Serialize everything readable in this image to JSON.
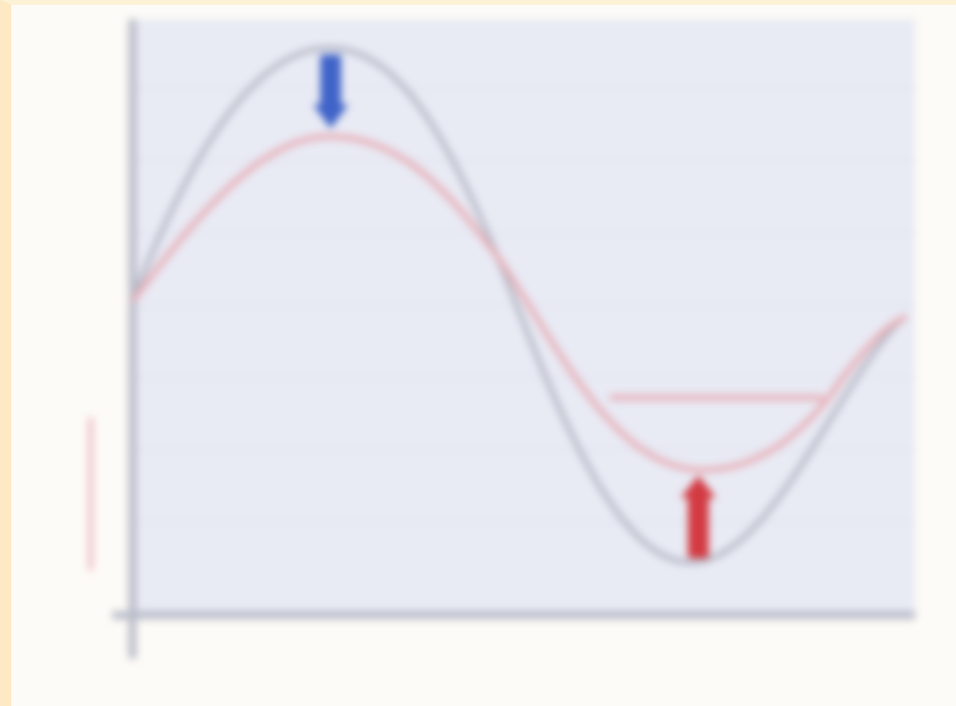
{
  "title": "",
  "xlabel": "",
  "ylabel": "",
  "colors": {
    "plot_background": "#e8eaf4",
    "gridline": "#d5d8e6",
    "axis": "#b9bcc9",
    "curve_large": "#b8bcc8",
    "curve_small": "#e8aeb6",
    "arrow_down": "#3f63c8",
    "arrow_up": "#d33a42",
    "frame_border": "#fde9c4"
  },
  "icons": {
    "arrow_down": "arrow-down-icon",
    "arrow_up": "arrow-up-icon"
  }
}
